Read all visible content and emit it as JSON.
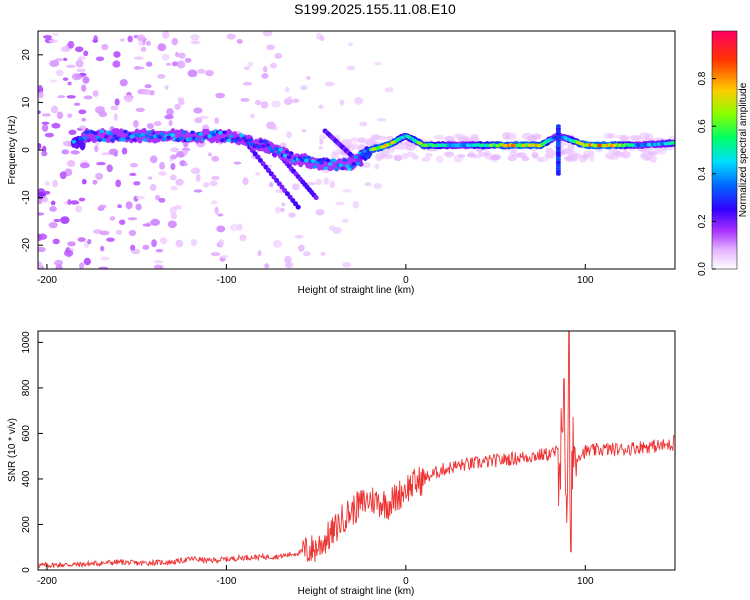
{
  "title": "S199.2025.155.11.08.E10",
  "chart_data": [
    {
      "type": "heatmap",
      "xlabel": "Height of straight line (km)",
      "ylabel": "Frequency (Hz)",
      "xlim": [
        -205,
        150
      ],
      "ylim": [
        -25,
        25
      ],
      "xticks": [
        -200,
        -100,
        0,
        100
      ],
      "yticks": [
        -20,
        -10,
        0,
        10,
        20
      ],
      "colorbar": {
        "label": "Normalized spectral amplitude",
        "range": [
          0,
          1
        ],
        "ticks": [
          0.0,
          0.2,
          0.4,
          0.6,
          0.8
        ],
        "colormap": [
          "#ffffff",
          "#e6b3ff",
          "#aa33ff",
          "#3300ff",
          "#0066ff",
          "#00ddff",
          "#00ff66",
          "#88ff00",
          "#ffcc00",
          "#ff3300",
          "#ff0066"
        ]
      },
      "ridge": {
        "description_points": [
          {
            "x": -180,
            "y": 3,
            "amp": 0.35
          },
          {
            "x": -160,
            "y": 3,
            "amp": 0.3
          },
          {
            "x": -140,
            "y": 3,
            "amp": 0.35
          },
          {
            "x": -120,
            "y": 3,
            "amp": 0.3
          },
          {
            "x": -100,
            "y": 3,
            "amp": 0.3
          },
          {
            "x": -80,
            "y": 1,
            "amp": 0.3
          },
          {
            "x": -60,
            "y": -2,
            "amp": 0.3
          },
          {
            "x": -45,
            "y": -3,
            "amp": 0.3
          },
          {
            "x": -30,
            "y": -3,
            "amp": 0.3
          },
          {
            "x": -20,
            "y": 0,
            "amp": 0.8
          },
          {
            "x": -10,
            "y": 1,
            "amp": 0.9
          },
          {
            "x": 0,
            "y": 3,
            "amp": 0.6
          },
          {
            "x": 10,
            "y": 1,
            "amp": 0.8
          },
          {
            "x": 30,
            "y": 1,
            "amp": 0.5
          },
          {
            "x": 60,
            "y": 1,
            "amp": 0.9
          },
          {
            "x": 75,
            "y": 1,
            "amp": 0.85
          },
          {
            "x": 85,
            "y": 3,
            "amp": 0.4
          },
          {
            "x": 100,
            "y": 1,
            "amp": 0.9
          },
          {
            "x": 115,
            "y": 1,
            "amp": 0.9
          },
          {
            "x": 130,
            "y": 1,
            "amp": 0.5
          },
          {
            "x": 150,
            "y": 1.5,
            "amp": 0.6
          }
        ]
      }
    },
    {
      "type": "line",
      "xlabel": "Height of straight line (km)",
      "ylabel": "SNR (10 * v/v)",
      "xlim": [
        -205,
        150
      ],
      "ylim": [
        0,
        1050
      ],
      "xticks": [
        -200,
        -100,
        0,
        100
      ],
      "yticks": [
        0,
        200,
        400,
        600,
        800,
        1000
      ],
      "color": "#ee3333",
      "series": [
        {
          "x": [
            -205,
            -180,
            -160,
            -150,
            -130,
            -118,
            -110,
            -90,
            -70,
            -60,
            -50,
            -40,
            -35,
            -30,
            -25,
            -20,
            -15,
            -10,
            -5,
            0,
            10,
            20,
            30,
            40,
            50,
            60,
            70,
            80,
            85,
            88,
            90,
            92,
            95,
            100,
            110,
            120,
            130,
            140,
            150
          ],
          "y": [
            20,
            25,
            35,
            30,
            35,
            50,
            40,
            55,
            60,
            75,
            95,
            170,
            230,
            260,
            290,
            310,
            300,
            290,
            320,
            360,
            400,
            440,
            460,
            470,
            480,
            490,
            500,
            510,
            520,
            480,
            420,
            450,
            500,
            520,
            530,
            530,
            540,
            545,
            550
          ]
        }
      ]
    }
  ]
}
